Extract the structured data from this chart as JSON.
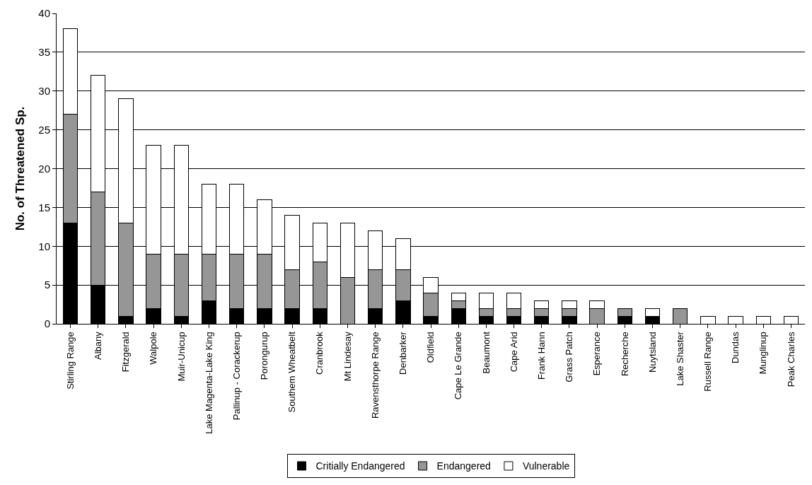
{
  "chart_data": {
    "type": "bar",
    "stacked": true,
    "ylabel": "No. of Threatened Sp.",
    "categories": [
      "Stirling Range",
      "Albany",
      "Fitzgerald",
      "Walpole",
      "Muir-Unicup",
      "Lake Magenta-Lake King",
      "Pallinup - Corackerup",
      "Porongurup",
      "Southem Wheatbelt",
      "Cranbrook",
      "Mt Lindesay",
      "Ravensthorpe Range",
      "Denbarker",
      "Oldfield",
      "Cape Le Grande",
      "Beaumont",
      "Cape Arid",
      "Frank Hann",
      "Grass Patch",
      "Esperance",
      "Recherche",
      "Nuytsland",
      "Lake Shaster",
      "Russell Range",
      "Dundas",
      "Munglinup",
      "Peak Charles"
    ],
    "series": [
      {
        "name": "Critially Endangered",
        "color": "#000000",
        "values": [
          13,
          5,
          1,
          2,
          1,
          3,
          2,
          2,
          2,
          2,
          0,
          2,
          3,
          1,
          2,
          1,
          1,
          1,
          1,
          0,
          1,
          1,
          0,
          0,
          0,
          0,
          0
        ]
      },
      {
        "name": "Endangered",
        "color": "#969696",
        "values": [
          14,
          12,
          12,
          7,
          8,
          6,
          7,
          7,
          5,
          6,
          6,
          5,
          4,
          3,
          1,
          1,
          1,
          1,
          1,
          2,
          1,
          0,
          2,
          0,
          0,
          0,
          0
        ]
      },
      {
        "name": "Vulnerable",
        "color": "#ffffff",
        "values": [
          11,
          15,
          16,
          14,
          14,
          9,
          9,
          7,
          7,
          5,
          7,
          5,
          4,
          2,
          1,
          2,
          2,
          1,
          1,
          1,
          0,
          1,
          0,
          1,
          1,
          1,
          1
        ]
      }
    ],
    "ylim": [
      0,
      40
    ],
    "yticks": [
      0,
      5,
      10,
      15,
      20,
      25,
      30,
      35,
      40
    ],
    "grid": "y",
    "legend": "bottom"
  }
}
